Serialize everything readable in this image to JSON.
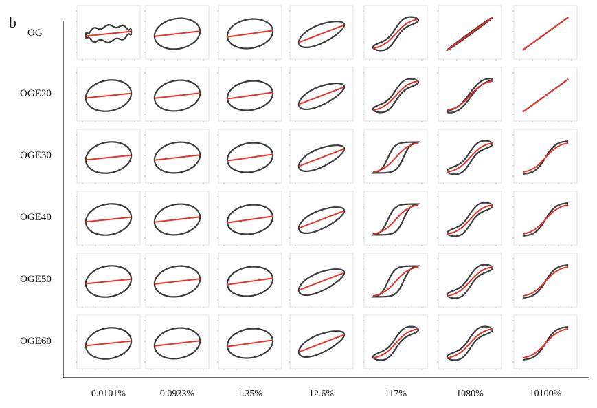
{
  "figure": {
    "panel_letter": "b",
    "row_labels": [
      "OG",
      "OGE20",
      "OGE30",
      "OGE40",
      "OGE50",
      "OGE60"
    ],
    "column_labels": [
      "0.0101%",
      "0.0933%",
      "1.35%",
      "12.6%",
      "117%",
      "1080%",
      "10100%"
    ]
  },
  "chart_data": {
    "type": "line",
    "title": "",
    "xlabel": "",
    "ylabel": "",
    "layout": "grid of Lissajous-Bowditch plots (rows = samples, columns = strain amplitude)",
    "grid": false,
    "colors": {
      "stress_loop": "#3b3b3b",
      "elastic_line": "#e8322a"
    },
    "series": [
      {
        "name": "OG",
        "loop_shape_by_column": [
          "wavy-ellipse",
          "ellipse",
          "ellipse",
          "distorted",
          "s-shaped",
          "near-linear",
          "linear"
        ]
      },
      {
        "name": "OGE20",
        "loop_shape_by_column": [
          "ellipse",
          "ellipse",
          "ellipse",
          "distorted",
          "s-shaped",
          "narrow-s",
          "linear"
        ]
      },
      {
        "name": "OGE30",
        "loop_shape_by_column": [
          "ellipse",
          "ellipse",
          "ellipse",
          "distorted",
          "parallelogram",
          "s-shaped",
          "sigmoid"
        ]
      },
      {
        "name": "OGE40",
        "loop_shape_by_column": [
          "ellipse",
          "ellipse",
          "ellipse",
          "distorted",
          "parallelogram",
          "s-shaped",
          "sigmoid"
        ]
      },
      {
        "name": "OGE50",
        "loop_shape_by_column": [
          "ellipse",
          "ellipse",
          "ellipse",
          "distorted",
          "parallelogram",
          "s-shaped",
          "sigmoid"
        ]
      },
      {
        "name": "OGE60",
        "loop_shape_by_column": [
          "ellipse",
          "ellipse",
          "ellipse",
          "distorted",
          "s-shaped",
          "s-shaped",
          "sigmoid"
        ]
      }
    ]
  }
}
